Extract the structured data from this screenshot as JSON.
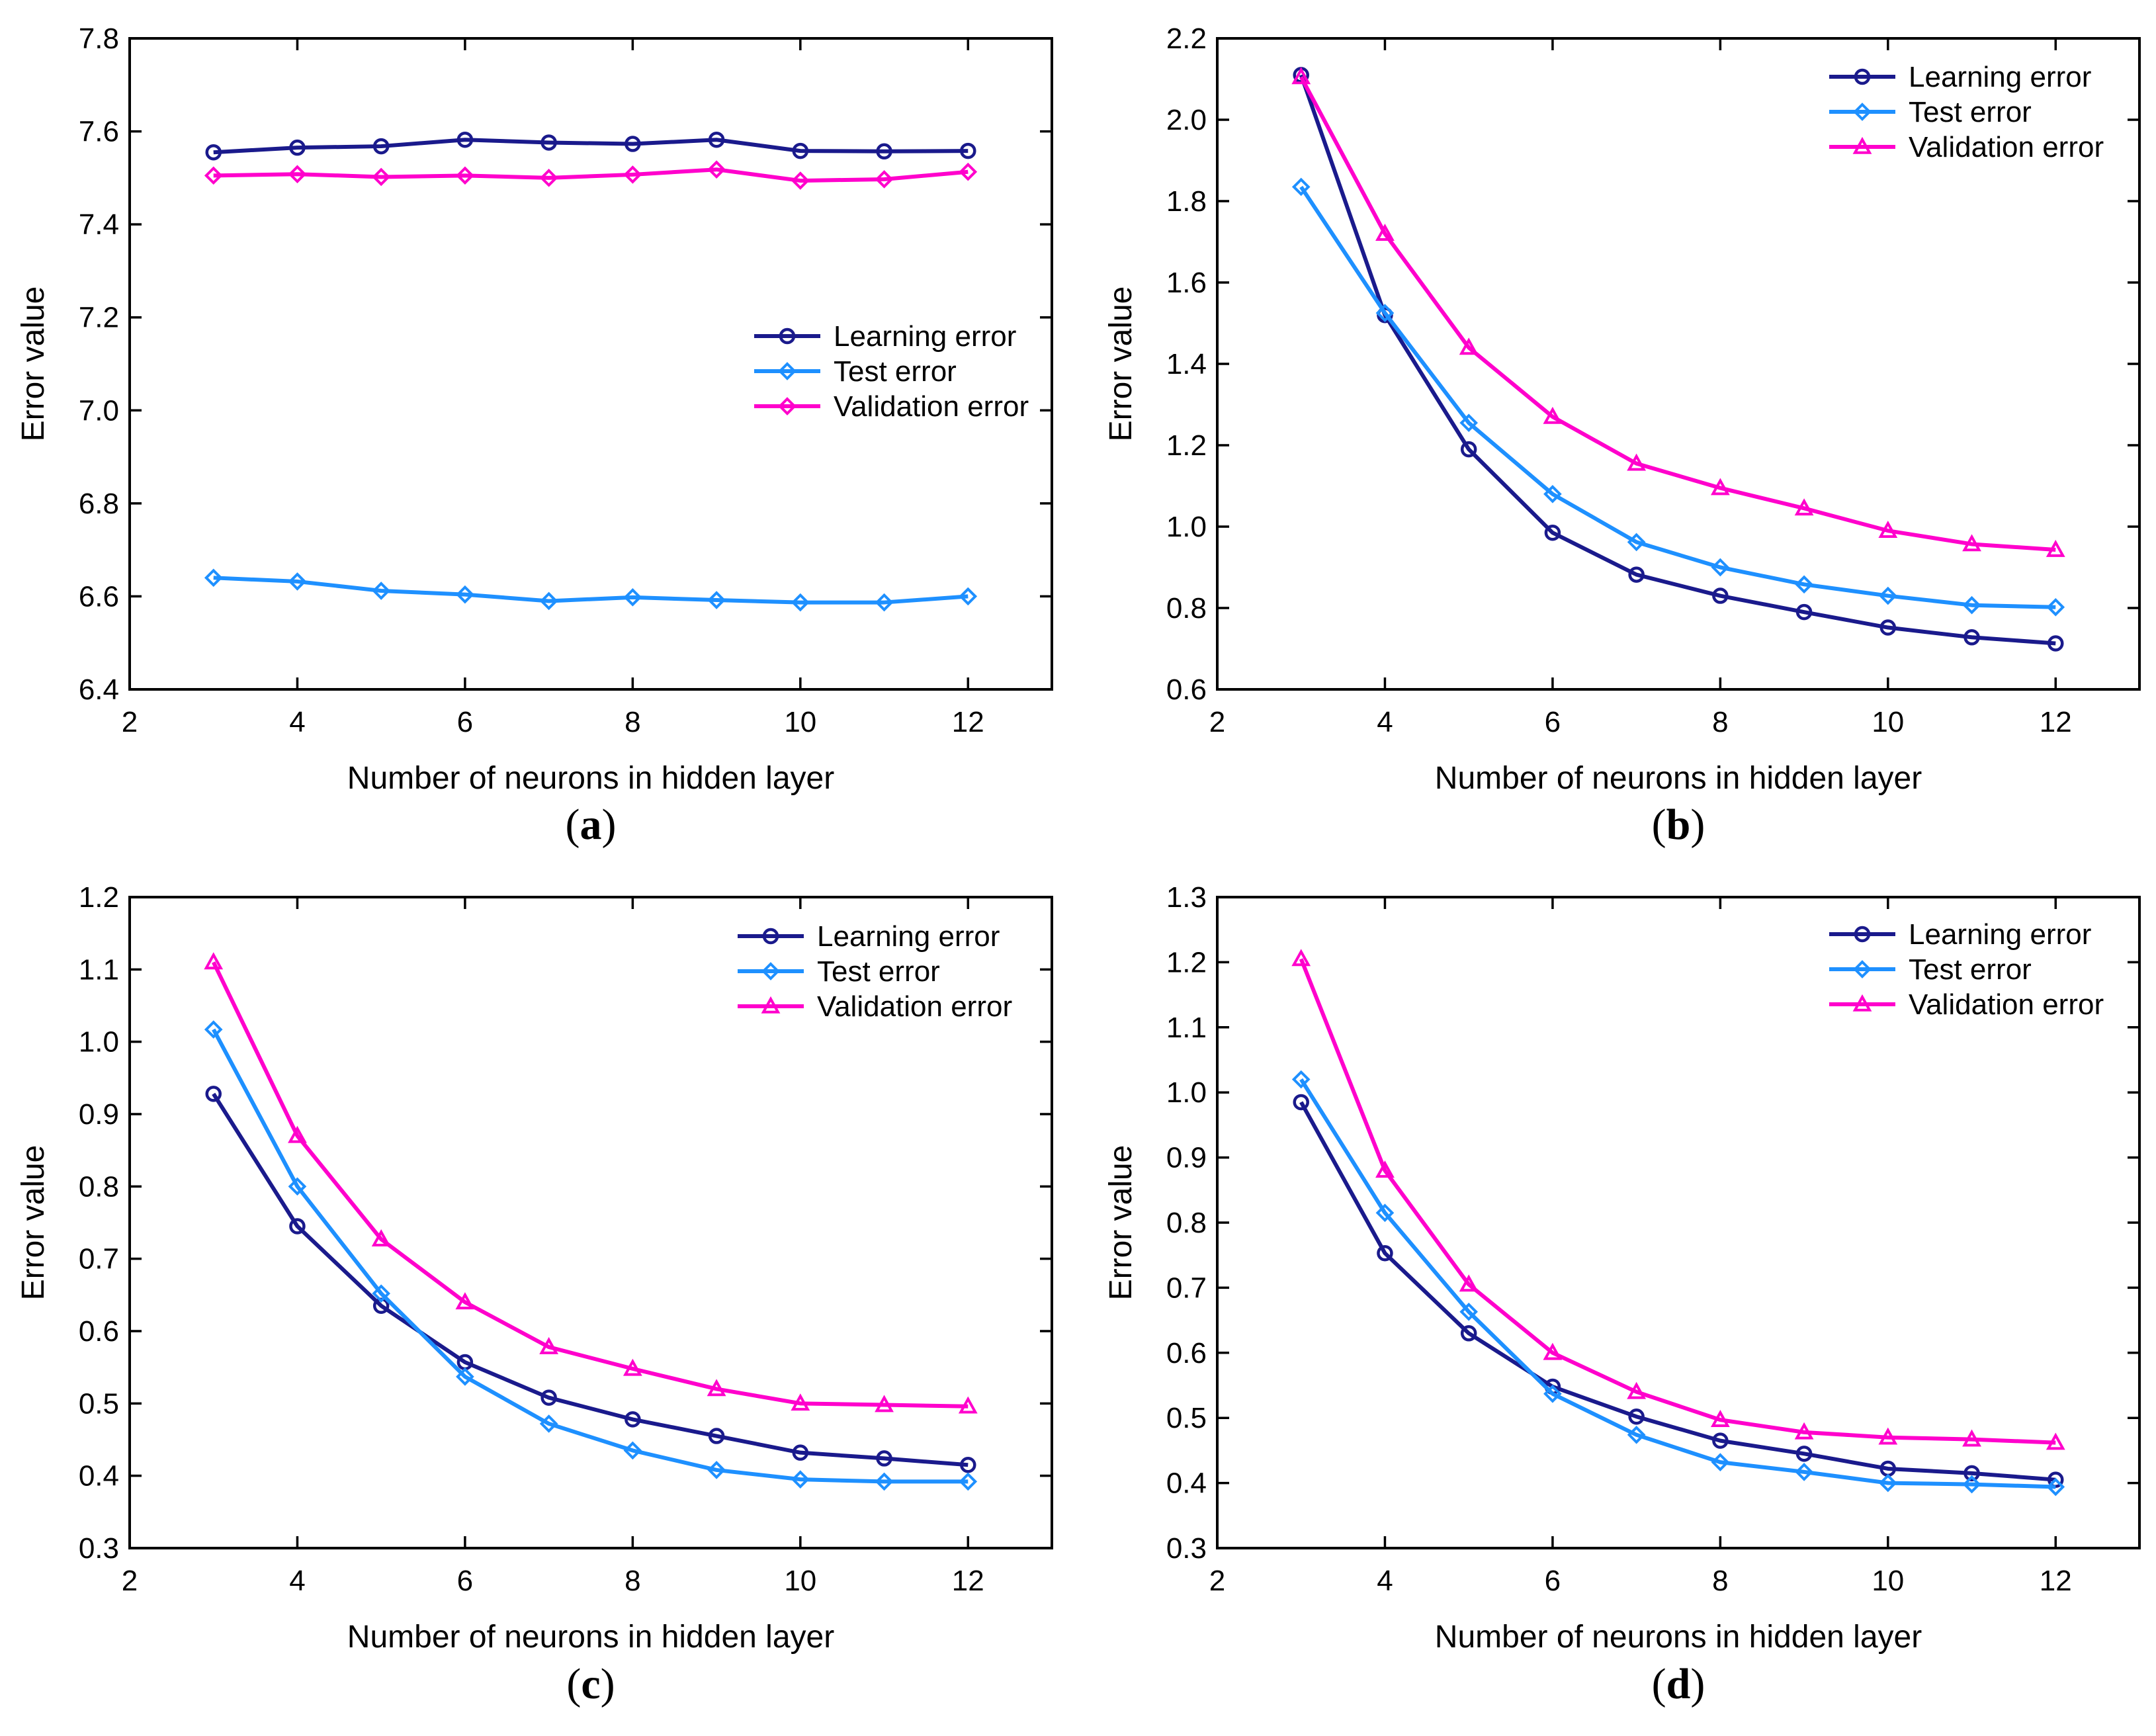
{
  "colors": {
    "learning": "#1a1a8c",
    "test": "#1e90ff",
    "validation": "#ff00cc",
    "frame": "#000000"
  },
  "chart_data": [
    {
      "type": "line",
      "caption": {
        "open": "(",
        "letter": "a",
        "close": ")"
      },
      "xlabel": "Number of neurons in hidden layer",
      "ylabel": "Error value",
      "xlim": [
        2,
        13
      ],
      "ylim": [
        6.4,
        7.8
      ],
      "xticks": [
        2,
        4,
        6,
        8,
        10,
        12
      ],
      "yticks": [
        "6.4",
        "6.6",
        "6.8",
        "7.0",
        "7.2",
        "7.4",
        "7.6",
        "7.8"
      ],
      "legend": "center-right",
      "x": [
        3,
        4,
        5,
        6,
        7,
        8,
        9,
        10,
        11,
        12
      ],
      "series": [
        {
          "name": "Learning error",
          "marker": "circle",
          "values": [
            7.555,
            7.565,
            7.568,
            7.582,
            7.576,
            7.573,
            7.582,
            7.558,
            7.557,
            7.558
          ]
        },
        {
          "name": "Test error",
          "marker": "diamond",
          "values": [
            6.64,
            6.632,
            6.612,
            6.604,
            6.59,
            6.598,
            6.592,
            6.587,
            6.587,
            6.6
          ]
        },
        {
          "name": "Validation error",
          "marker": "diamond",
          "values": [
            7.505,
            7.508,
            7.502,
            7.505,
            7.5,
            7.507,
            7.518,
            7.494,
            7.497,
            7.513
          ]
        }
      ]
    },
    {
      "type": "line",
      "caption": {
        "open": "(",
        "letter": "b",
        "close": ")"
      },
      "xlabel": "Number of neurons in hidden layer",
      "ylabel": "Error value",
      "xlim": [
        2,
        13
      ],
      "ylim": [
        0.6,
        2.2
      ],
      "xticks": [
        2,
        4,
        6,
        8,
        10,
        12
      ],
      "yticks": [
        "0.6",
        "0.8",
        "1.0",
        "1.2",
        "1.4",
        "1.6",
        "1.8",
        "2.0",
        "2.2"
      ],
      "legend": "top-right",
      "x": [
        3,
        4,
        5,
        6,
        7,
        8,
        9,
        10,
        11,
        12
      ],
      "series": [
        {
          "name": "Learning error",
          "marker": "circle",
          "values": [
            2.11,
            1.52,
            1.19,
            0.985,
            0.882,
            0.83,
            0.79,
            0.752,
            0.728,
            0.713
          ]
        },
        {
          "name": "Test error",
          "marker": "diamond",
          "values": [
            1.835,
            1.525,
            1.255,
            1.08,
            0.962,
            0.9,
            0.858,
            0.83,
            0.807,
            0.802
          ]
        },
        {
          "name": "Validation error",
          "marker": "triangle",
          "values": [
            2.105,
            1.72,
            1.44,
            1.27,
            1.155,
            1.095,
            1.045,
            0.99,
            0.957,
            0.943
          ]
        }
      ]
    },
    {
      "type": "line",
      "caption": {
        "open": "(",
        "letter": "c",
        "close": ")"
      },
      "xlabel": "Number of neurons in hidden layer",
      "ylabel": "Error value",
      "xlim": [
        2,
        13
      ],
      "ylim": [
        0.3,
        1.2
      ],
      "xticks": [
        2,
        4,
        6,
        8,
        10,
        12
      ],
      "yticks": [
        "0.3",
        "0.4",
        "0.5",
        "0.6",
        "0.7",
        "0.8",
        "0.9",
        "1.0",
        "1.1",
        "1.2"
      ],
      "legend": "top-right",
      "x": [
        3,
        4,
        5,
        6,
        7,
        8,
        9,
        10,
        11,
        12
      ],
      "series": [
        {
          "name": "Learning error",
          "marker": "circle",
          "values": [
            0.928,
            0.745,
            0.635,
            0.557,
            0.508,
            0.478,
            0.455,
            0.432,
            0.424,
            0.415
          ]
        },
        {
          "name": "Test error",
          "marker": "diamond",
          "values": [
            1.017,
            0.8,
            0.652,
            0.537,
            0.472,
            0.435,
            0.408,
            0.395,
            0.392,
            0.392
          ]
        },
        {
          "name": "Validation error",
          "marker": "triangle",
          "values": [
            1.11,
            0.87,
            0.727,
            0.64,
            0.578,
            0.548,
            0.52,
            0.5,
            0.498,
            0.496
          ]
        }
      ]
    },
    {
      "type": "line",
      "caption": {
        "open": "(",
        "letter": "d",
        "close": ")"
      },
      "xlabel": "Number of neurons in hidden layer",
      "ylabel": "Error value",
      "xlim": [
        2,
        13
      ],
      "ylim": [
        0.3,
        1.3
      ],
      "xticks": [
        2,
        4,
        6,
        8,
        10,
        12
      ],
      "yticks": [
        "0.3",
        "0.4",
        "0.5",
        "0.6",
        "0.7",
        "0.8",
        "0.9",
        "1.0",
        "1.1",
        "1.2",
        "1.3"
      ],
      "legend": "top-right",
      "x": [
        3,
        4,
        5,
        6,
        7,
        8,
        9,
        10,
        11,
        12
      ],
      "series": [
        {
          "name": "Learning error",
          "marker": "circle",
          "values": [
            0.985,
            0.753,
            0.63,
            0.548,
            0.502,
            0.465,
            0.445,
            0.422,
            0.415,
            0.405
          ]
        },
        {
          "name": "Test error",
          "marker": "diamond",
          "values": [
            1.02,
            0.815,
            0.663,
            0.537,
            0.474,
            0.432,
            0.417,
            0.4,
            0.398,
            0.394
          ]
        },
        {
          "name": "Validation error",
          "marker": "triangle",
          "values": [
            1.205,
            0.88,
            0.705,
            0.6,
            0.54,
            0.497,
            0.478,
            0.47,
            0.467,
            0.462
          ]
        }
      ]
    }
  ]
}
